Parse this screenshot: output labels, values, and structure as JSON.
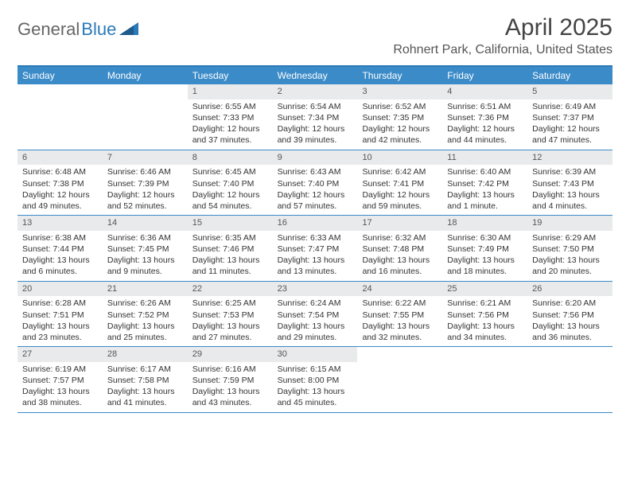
{
  "brand": {
    "text1": "General",
    "text2": "Blue"
  },
  "title": "April 2025",
  "location": "Rohnert Park, California, United States",
  "colors": {
    "header_bg": "#3b8bc8",
    "border": "#3b8bc8",
    "daynum_bg": "#e9eaec",
    "text": "#333333",
    "muted": "#555555"
  },
  "day_names": [
    "Sunday",
    "Monday",
    "Tuesday",
    "Wednesday",
    "Thursday",
    "Friday",
    "Saturday"
  ],
  "weeks": [
    [
      {
        "empty": true
      },
      {
        "empty": true
      },
      {
        "day": "1",
        "sunrise": "Sunrise: 6:55 AM",
        "sunset": "Sunset: 7:33 PM",
        "daylight": "Daylight: 12 hours and 37 minutes."
      },
      {
        "day": "2",
        "sunrise": "Sunrise: 6:54 AM",
        "sunset": "Sunset: 7:34 PM",
        "daylight": "Daylight: 12 hours and 39 minutes."
      },
      {
        "day": "3",
        "sunrise": "Sunrise: 6:52 AM",
        "sunset": "Sunset: 7:35 PM",
        "daylight": "Daylight: 12 hours and 42 minutes."
      },
      {
        "day": "4",
        "sunrise": "Sunrise: 6:51 AM",
        "sunset": "Sunset: 7:36 PM",
        "daylight": "Daylight: 12 hours and 44 minutes."
      },
      {
        "day": "5",
        "sunrise": "Sunrise: 6:49 AM",
        "sunset": "Sunset: 7:37 PM",
        "daylight": "Daylight: 12 hours and 47 minutes."
      }
    ],
    [
      {
        "day": "6",
        "sunrise": "Sunrise: 6:48 AM",
        "sunset": "Sunset: 7:38 PM",
        "daylight": "Daylight: 12 hours and 49 minutes."
      },
      {
        "day": "7",
        "sunrise": "Sunrise: 6:46 AM",
        "sunset": "Sunset: 7:39 PM",
        "daylight": "Daylight: 12 hours and 52 minutes."
      },
      {
        "day": "8",
        "sunrise": "Sunrise: 6:45 AM",
        "sunset": "Sunset: 7:40 PM",
        "daylight": "Daylight: 12 hours and 54 minutes."
      },
      {
        "day": "9",
        "sunrise": "Sunrise: 6:43 AM",
        "sunset": "Sunset: 7:40 PM",
        "daylight": "Daylight: 12 hours and 57 minutes."
      },
      {
        "day": "10",
        "sunrise": "Sunrise: 6:42 AM",
        "sunset": "Sunset: 7:41 PM",
        "daylight": "Daylight: 12 hours and 59 minutes."
      },
      {
        "day": "11",
        "sunrise": "Sunrise: 6:40 AM",
        "sunset": "Sunset: 7:42 PM",
        "daylight": "Daylight: 13 hours and 1 minute."
      },
      {
        "day": "12",
        "sunrise": "Sunrise: 6:39 AM",
        "sunset": "Sunset: 7:43 PM",
        "daylight": "Daylight: 13 hours and 4 minutes."
      }
    ],
    [
      {
        "day": "13",
        "sunrise": "Sunrise: 6:38 AM",
        "sunset": "Sunset: 7:44 PM",
        "daylight": "Daylight: 13 hours and 6 minutes."
      },
      {
        "day": "14",
        "sunrise": "Sunrise: 6:36 AM",
        "sunset": "Sunset: 7:45 PM",
        "daylight": "Daylight: 13 hours and 9 minutes."
      },
      {
        "day": "15",
        "sunrise": "Sunrise: 6:35 AM",
        "sunset": "Sunset: 7:46 PM",
        "daylight": "Daylight: 13 hours and 11 minutes."
      },
      {
        "day": "16",
        "sunrise": "Sunrise: 6:33 AM",
        "sunset": "Sunset: 7:47 PM",
        "daylight": "Daylight: 13 hours and 13 minutes."
      },
      {
        "day": "17",
        "sunrise": "Sunrise: 6:32 AM",
        "sunset": "Sunset: 7:48 PM",
        "daylight": "Daylight: 13 hours and 16 minutes."
      },
      {
        "day": "18",
        "sunrise": "Sunrise: 6:30 AM",
        "sunset": "Sunset: 7:49 PM",
        "daylight": "Daylight: 13 hours and 18 minutes."
      },
      {
        "day": "19",
        "sunrise": "Sunrise: 6:29 AM",
        "sunset": "Sunset: 7:50 PM",
        "daylight": "Daylight: 13 hours and 20 minutes."
      }
    ],
    [
      {
        "day": "20",
        "sunrise": "Sunrise: 6:28 AM",
        "sunset": "Sunset: 7:51 PM",
        "daylight": "Daylight: 13 hours and 23 minutes."
      },
      {
        "day": "21",
        "sunrise": "Sunrise: 6:26 AM",
        "sunset": "Sunset: 7:52 PM",
        "daylight": "Daylight: 13 hours and 25 minutes."
      },
      {
        "day": "22",
        "sunrise": "Sunrise: 6:25 AM",
        "sunset": "Sunset: 7:53 PM",
        "daylight": "Daylight: 13 hours and 27 minutes."
      },
      {
        "day": "23",
        "sunrise": "Sunrise: 6:24 AM",
        "sunset": "Sunset: 7:54 PM",
        "daylight": "Daylight: 13 hours and 29 minutes."
      },
      {
        "day": "24",
        "sunrise": "Sunrise: 6:22 AM",
        "sunset": "Sunset: 7:55 PM",
        "daylight": "Daylight: 13 hours and 32 minutes."
      },
      {
        "day": "25",
        "sunrise": "Sunrise: 6:21 AM",
        "sunset": "Sunset: 7:56 PM",
        "daylight": "Daylight: 13 hours and 34 minutes."
      },
      {
        "day": "26",
        "sunrise": "Sunrise: 6:20 AM",
        "sunset": "Sunset: 7:56 PM",
        "daylight": "Daylight: 13 hours and 36 minutes."
      }
    ],
    [
      {
        "day": "27",
        "sunrise": "Sunrise: 6:19 AM",
        "sunset": "Sunset: 7:57 PM",
        "daylight": "Daylight: 13 hours and 38 minutes."
      },
      {
        "day": "28",
        "sunrise": "Sunrise: 6:17 AM",
        "sunset": "Sunset: 7:58 PM",
        "daylight": "Daylight: 13 hours and 41 minutes."
      },
      {
        "day": "29",
        "sunrise": "Sunrise: 6:16 AM",
        "sunset": "Sunset: 7:59 PM",
        "daylight": "Daylight: 13 hours and 43 minutes."
      },
      {
        "day": "30",
        "sunrise": "Sunrise: 6:15 AM",
        "sunset": "Sunset: 8:00 PM",
        "daylight": "Daylight: 13 hours and 45 minutes."
      },
      {
        "empty": true
      },
      {
        "empty": true
      },
      {
        "empty": true
      }
    ]
  ]
}
